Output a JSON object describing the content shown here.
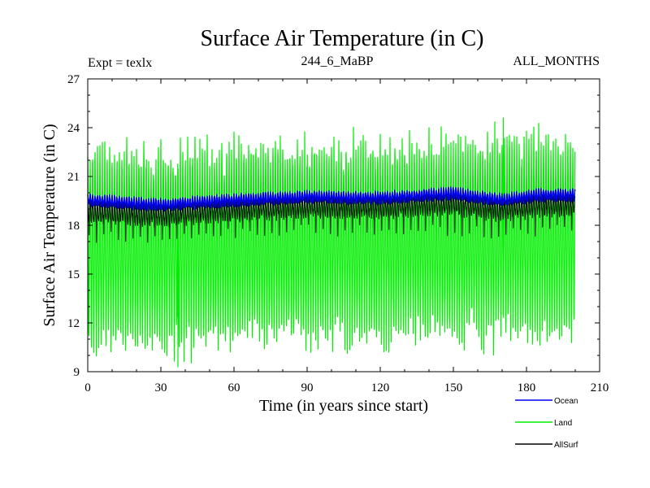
{
  "chart_data": {
    "type": "line",
    "title": "Surface Air Temperature (in C)",
    "header_left": "Expt = texlx",
    "header_center": "244_6_MaBP",
    "header_right": "ALL_MONTHS",
    "xlabel": "Time (in years since start)",
    "ylabel": "Surface Air Temperature (in C)",
    "xlim": [
      0,
      210
    ],
    "ylim": [
      9,
      27
    ],
    "xticks": [
      0,
      30,
      60,
      90,
      120,
      150,
      180,
      210
    ],
    "yticks": [
      9,
      12,
      15,
      18,
      21,
      24,
      27
    ],
    "x_data_range": [
      0,
      199.9
    ],
    "sampling": "monthly",
    "series": [
      {
        "name": "Land",
        "color": "#00ee00",
        "annual_mean_trend": [
          [
            0,
            16.6
          ],
          [
            30,
            16.6
          ],
          [
            60,
            16.9
          ],
          [
            90,
            17.0
          ],
          [
            120,
            17.0
          ],
          [
            150,
            17.1
          ],
          [
            180,
            17.2
          ],
          [
            200,
            17.2
          ]
        ],
        "seasonal_max_approx": 23.0,
        "seasonal_min_approx": 12.3,
        "extreme_max": 24.6,
        "extreme_min": 9.3
      },
      {
        "name": "Ocean",
        "color": "#0000ee",
        "annual_mean_trend": [
          [
            0,
            19.55
          ],
          [
            30,
            19.25
          ],
          [
            60,
            19.55
          ],
          [
            90,
            19.75
          ],
          [
            120,
            19.7
          ],
          [
            150,
            19.95
          ],
          [
            170,
            19.55
          ],
          [
            185,
            19.85
          ],
          [
            200,
            19.85
          ]
        ],
        "seasonal_amplitude": 0.3
      },
      {
        "name": "AllSurf",
        "color": "#000000",
        "annual_mean_trend": [
          [
            0,
            18.9
          ],
          [
            30,
            18.7
          ],
          [
            60,
            19.0
          ],
          [
            90,
            19.2
          ],
          [
            120,
            19.2
          ],
          [
            150,
            19.4
          ],
          [
            170,
            19.0
          ],
          [
            185,
            19.3
          ],
          [
            200,
            19.3
          ]
        ],
        "seasonal_amplitude": 0.6
      }
    ],
    "legend": [
      {
        "name": "Ocean",
        "color": "#0000ee"
      },
      {
        "name": "Land",
        "color": "#00ee00"
      },
      {
        "name": "AllSurf",
        "color": "#000000"
      }
    ],
    "legend_position": "below-right"
  }
}
